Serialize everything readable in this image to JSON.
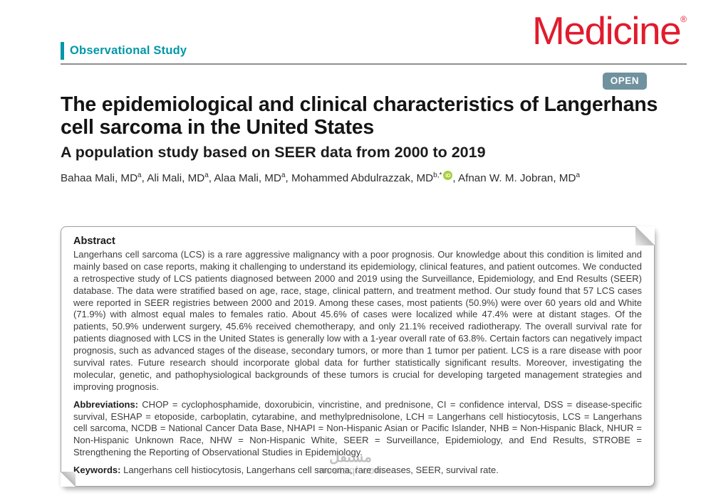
{
  "colors": {
    "teal": "#0097a8",
    "logo_red": "#e11b2d",
    "badge_slate": "#6f929e",
    "orcid_green": "#a6ce39"
  },
  "header": {
    "article_type": "Observational Study",
    "journal_logo": "Medicine",
    "registered_mark": "®",
    "open_badge": "OPEN"
  },
  "article": {
    "title": "The epidemiological and clinical characteristics of Langerhans cell sarcoma in the United States",
    "subtitle": "A population study based on SEER data from 2000 to 2019"
  },
  "authors": [
    {
      "name": "Bahaa Mali, MD",
      "sup": "a",
      "sep": ", "
    },
    {
      "name": "Ali Mali, MD",
      "sup": "a",
      "sep": ", "
    },
    {
      "name": "Alaa Mali, MD",
      "sup": "a",
      "sep": ", "
    },
    {
      "name": "Mohammed Abdulrazzak, MD",
      "sup": "b,*",
      "orcid_label": "iD",
      "sep": ", "
    },
    {
      "name": "Afnan W. M. Jobran, MD",
      "sup": "a",
      "sep": ""
    }
  ],
  "abstract": {
    "heading": "Abstract",
    "body": "Langerhans cell sarcoma (LCS) is a rare aggressive malignancy with a poor prognosis. Our knowledge about this condition is limited and mainly based on case reports, making it challenging to understand its epidemiology, clinical features, and patient outcomes. We conducted a retrospective study of LCS patients diagnosed between 2000 and 2019 using the Surveillance, Epidemiology, and End Results (SEER) database. The data were stratified based on age, race, stage, clinical pattern, and treatment method. Our study found that 57 LCS cases were reported in SEER registries between 2000 and 2019. Among these cases, most patients (50.9%) were over 60 years old and White (71.9%) with almost equal males to females ratio. About 45.6% of cases were localized while 47.4% were at distant stages. Of the patients, 50.9% underwent surgery, 45.6% received chemotherapy, and only 21.1% received radiotherapy. The overall survival rate for patients diagnosed with LCS in the United States is generally low with a 1-year overall rate of 63.8%. Certain factors can negatively impact prognosis, such as advanced stages of the disease, secondary tumors, or more than 1 tumor per patient. LCS is a rare disease with poor survival rates. Future research should incorporate global data for further statistically significant results. Moreover, investigating the molecular, genetic, and pathophysiological backgrounds of these tumors is crucial for developing targeted management strategies and improving prognosis.",
    "abbreviations_label": "Abbreviations:",
    "abbreviations": "CHOP = cyclophosphamide, doxorubicin, vincristine, and prednisone, CI = confidence interval, DSS = disease-specific survival, ESHAP = etoposide, carboplatin, cytarabine, and methylprednisolone, LCH = Langerhans cell histiocytosis, LCS = Langerhans cell sarcoma, NCDB = National Cancer Data Base, NHAPI = Non-Hispanic Asian or Pacific Islander, NHB = Non-Hispanic Black, NHUR = Non-Hispanic Unknown Race, NHW = Non-Hispanic White, SEER = Surveillance, Epidemiology, and End Results, STROBE = Strengthening the Reporting of Observational Studies in Epidemiology.",
    "keywords_label": "Keywords:",
    "keywords": "Langerhans cell histiocytosis, Langerhans cell sarcoma, rare diseases, SEER, survival rate."
  },
  "watermark": {
    "logo_text": "مستقل",
    "domain": "mostaql.com"
  }
}
